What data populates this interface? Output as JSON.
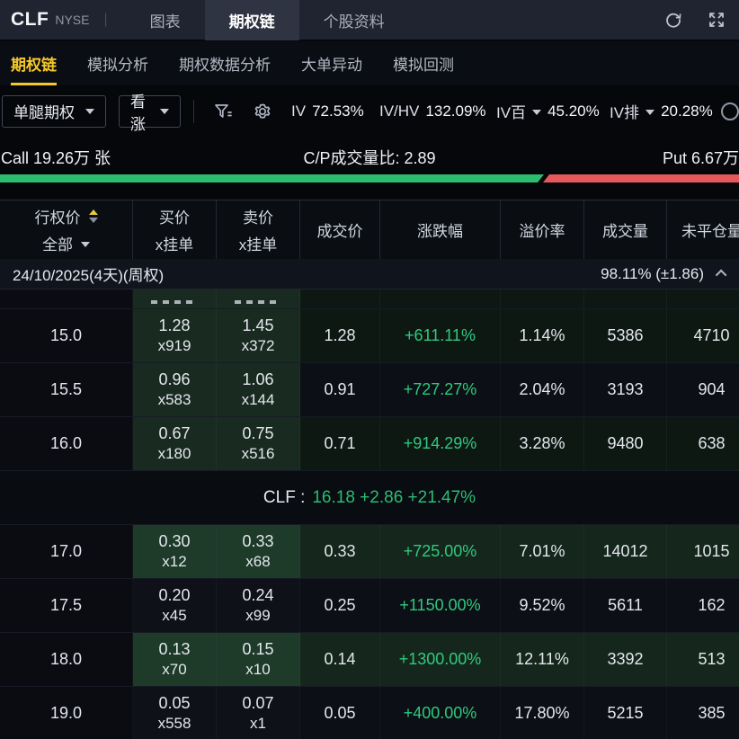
{
  "colors": {
    "accent_yellow": "#f5c829",
    "bar_green": "#2dbd6e",
    "bar_red": "#e5595c",
    "text_green": "#2fca7e",
    "topbar_bg": "#1f2430"
  },
  "topbar": {
    "symbol": "CLF",
    "exchange": "NYSE",
    "tabs": [
      {
        "label": "图表",
        "active": false
      },
      {
        "label": "期权链",
        "active": true
      },
      {
        "label": "个股资料",
        "active": false
      }
    ]
  },
  "subnav": {
    "items": [
      {
        "label": "期权链",
        "active": true
      },
      {
        "label": "模拟分析",
        "active": false
      },
      {
        "label": "期权数据分析",
        "active": false
      },
      {
        "label": "大单异动",
        "active": false
      },
      {
        "label": "模拟回测",
        "active": false
      }
    ]
  },
  "toolbar": {
    "leg_dropdown": "单腿期权",
    "direction_dropdown": "看涨",
    "metrics": [
      {
        "label": "IV",
        "value": "72.53%",
        "dropdown": false
      },
      {
        "label": "IV/HV",
        "value": "132.09%",
        "dropdown": false
      },
      {
        "label": "IV百",
        "value": "45.20%",
        "dropdown": true
      },
      {
        "label": "IV排",
        "value": "20.28%",
        "dropdown": true
      }
    ]
  },
  "cp": {
    "call_label": "Call 19.26万 张",
    "ratio_label": "C/P成交量比:  2.89",
    "put_label": "Put 6.67万",
    "call_pct": 74.3,
    "put_pct": 25.7
  },
  "table": {
    "headers": [
      {
        "line1": "行权价",
        "line2": "全部"
      },
      {
        "line1": "买价",
        "line2": "x挂单"
      },
      {
        "line1": "卖价",
        "line2": "x挂单"
      },
      {
        "line1": "成交价"
      },
      {
        "line1": "涨跌幅"
      },
      {
        "line1": "溢价率"
      },
      {
        "line1": "成交量"
      },
      {
        "line1": "未平仓量"
      }
    ],
    "expiry": {
      "date": "24/10/2025(4天)(周权)",
      "iv": "98.11% (±1.86)"
    },
    "spot": {
      "symbol": "CLF :",
      "quote": "16.18 +2.86 +21.47%"
    },
    "rows": [
      {
        "strike": "15.0",
        "bid": "1.28",
        "bid_size": "x919",
        "ask": "1.45",
        "ask_size": "x372",
        "last": "1.28",
        "change": "+611.11%",
        "premium": "1.14%",
        "volume": "5386",
        "oi": "4710",
        "style": "g"
      },
      {
        "strike": "15.5",
        "bid": "0.96",
        "bid_size": "x583",
        "ask": "1.06",
        "ask_size": "x144",
        "last": "0.91",
        "change": "+727.27%",
        "premium": "2.04%",
        "volume": "3193",
        "oi": "904",
        "style": "gd"
      },
      {
        "strike": "16.0",
        "bid": "0.67",
        "bid_size": "x180",
        "ask": "0.75",
        "ask_size": "x516",
        "last": "0.71",
        "change": "+914.29%",
        "premium": "3.28%",
        "volume": "9480",
        "oi": "638",
        "style": "g"
      },
      {
        "type": "spot"
      },
      {
        "strike": "17.0",
        "bid": "0.30",
        "bid_size": "x12",
        "ask": "0.33",
        "ask_size": "x68",
        "last": "0.33",
        "change": "+725.00%",
        "premium": "7.01%",
        "volume": "14012",
        "oi": "1015",
        "style": "b"
      },
      {
        "strike": "17.5",
        "bid": "0.20",
        "bid_size": "x45",
        "ask": "0.24",
        "ask_size": "x99",
        "last": "0.25",
        "change": "+1150.00%",
        "premium": "9.52%",
        "volume": "5611",
        "oi": "162",
        "style": "d"
      },
      {
        "strike": "18.0",
        "bid": "0.13",
        "bid_size": "x70",
        "ask": "0.15",
        "ask_size": "x10",
        "last": "0.14",
        "change": "+1300.00%",
        "premium": "12.11%",
        "volume": "3392",
        "oi": "513",
        "style": "b"
      },
      {
        "strike": "19.0",
        "bid": "0.05",
        "bid_size": "x558",
        "ask": "0.07",
        "ask_size": "x1",
        "last": "0.05",
        "change": "+400.00%",
        "premium": "17.80%",
        "volume": "5215",
        "oi": "385",
        "style": "d"
      }
    ]
  }
}
